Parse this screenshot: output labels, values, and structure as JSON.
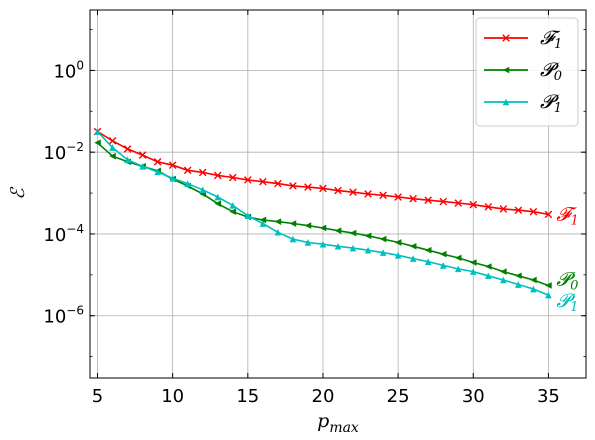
{
  "chart_data": {
    "type": "line",
    "xlabel": "p",
    "xlabel_sub": "max",
    "ylabel": "ℰ",
    "xlim": [
      4.5,
      37.5
    ],
    "ylim": [
      3e-08,
      30
    ],
    "yscale": "log",
    "grid": true,
    "legend_position": "top-right",
    "x_ticks": [
      5,
      10,
      15,
      20,
      25,
      30,
      35
    ],
    "y_ticks": [
      {
        "value": 1,
        "base": "10",
        "exp": "0"
      },
      {
        "value": 0.01,
        "base": "10",
        "exp": "−2"
      },
      {
        "value": 0.0001,
        "base": "10",
        "exp": "−4"
      },
      {
        "value": 1e-06,
        "base": "10",
        "exp": "−6"
      }
    ],
    "x": [
      5,
      6,
      7,
      8,
      9,
      10,
      11,
      12,
      13,
      14,
      15,
      16,
      17,
      18,
      19,
      20,
      21,
      22,
      23,
      24,
      25,
      26,
      27,
      28,
      29,
      30,
      31,
      32,
      33,
      34,
      35
    ],
    "series": [
      {
        "name": "𝓕",
        "name_sub": "1",
        "color": "#ff0000",
        "marker": "x",
        "values": [
          0.032,
          0.019,
          0.012,
          0.0085,
          0.0058,
          0.0048,
          0.0036,
          0.0032,
          0.0027,
          0.0024,
          0.0021,
          0.0019,
          0.0017,
          0.0015,
          0.0014,
          0.0013,
          0.00115,
          0.00105,
          0.00095,
          0.00088,
          0.0008,
          0.00073,
          0.00067,
          0.00062,
          0.00057,
          0.00052,
          0.00046,
          0.00041,
          0.00038,
          0.00035,
          0.0003
        ]
      },
      {
        "name": "𝓟",
        "name_sub": "0",
        "color": "#008000",
        "marker": "triangle-left",
        "values": [
          0.017,
          0.008,
          0.0058,
          0.0045,
          0.0035,
          0.0022,
          0.0015,
          0.00095,
          0.00055,
          0.00035,
          0.00026,
          0.00022,
          0.0002,
          0.00018,
          0.00016,
          0.00014,
          0.00012,
          0.000105,
          9e-05,
          7.5e-05,
          6.2e-05,
          5e-05,
          4e-05,
          3.2e-05,
          2.6e-05,
          2e-05,
          1.6e-05,
          1.2e-05,
          9.5e-06,
          7.5e-06,
          5.5e-06
        ]
      },
      {
        "name": "𝓟",
        "name_sub": "1",
        "color": "#00bfbf",
        "marker": "triangle-up",
        "values": [
          0.032,
          0.013,
          0.0065,
          0.0045,
          0.0033,
          0.0023,
          0.0017,
          0.0012,
          0.0008,
          0.0005,
          0.00028,
          0.00018,
          0.00011,
          7.5e-05,
          6.2e-05,
          5.6e-05,
          5e-05,
          4.5e-05,
          4e-05,
          3.5e-05,
          3e-05,
          2.5e-05,
          2.1e-05,
          1.7e-05,
          1.4e-05,
          1.2e-05,
          9.5e-06,
          7.5e-06,
          5.8e-06,
          4.5e-06,
          3.2e-06
        ]
      }
    ],
    "end_labels": [
      {
        "text": "𝓕",
        "sub": "1",
        "series": 0
      },
      {
        "text": "𝓟",
        "sub": "0",
        "series": 1
      },
      {
        "text": "𝓟",
        "sub": "1",
        "series": 2
      }
    ]
  }
}
